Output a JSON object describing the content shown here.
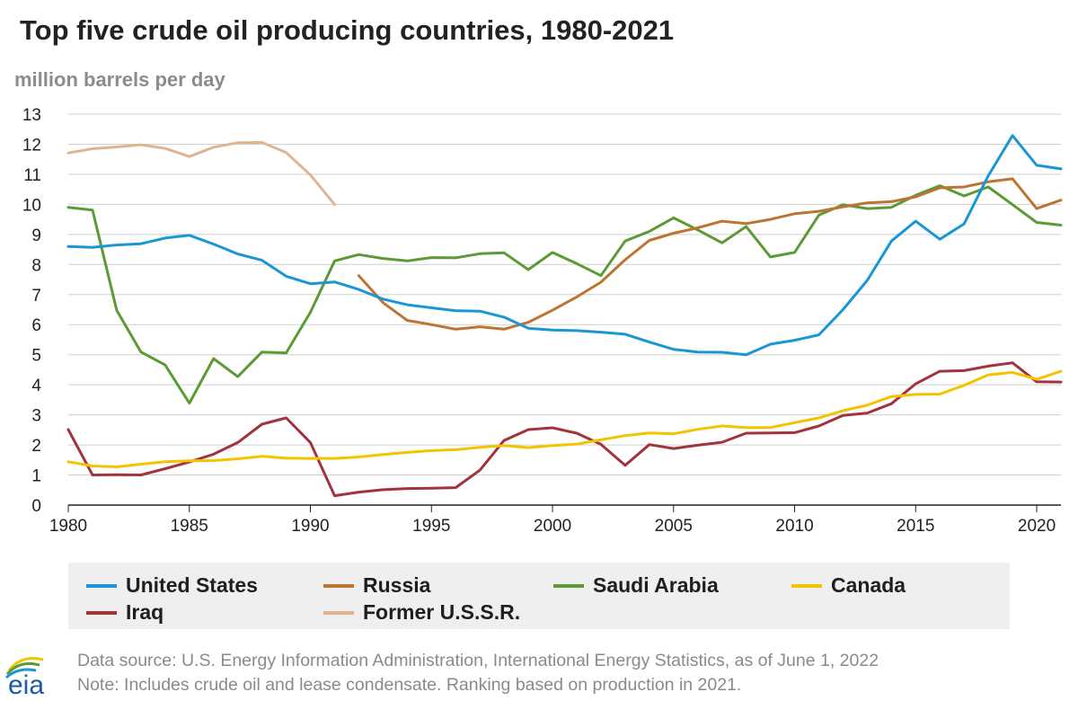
{
  "header": {
    "title": "Top five crude oil producing countries, 1980-2021",
    "unit": "million barrels per day"
  },
  "colors": {
    "United States": "#1a96d4",
    "Russia": "#bd7431",
    "Saudi Arabia": "#5b9a34",
    "Canada": "#f4c300",
    "Iraq": "#a2333d",
    "Former U.S.S.R.": "#dfb58f",
    "grid": "#cfcfcf",
    "axis": "#222222"
  },
  "chart_data": {
    "type": "line",
    "title": "Top five crude oil producing countries, 1980-2021",
    "xlabel": "",
    "ylabel": "million barrels per day",
    "xlim": [
      1980,
      2021
    ],
    "ylim": [
      0,
      13
    ],
    "x_ticks": [
      1980,
      1985,
      1990,
      1995,
      2000,
      2005,
      2010,
      2015,
      2020
    ],
    "y_ticks": [
      0,
      1,
      2,
      3,
      4,
      5,
      6,
      7,
      8,
      9,
      10,
      11,
      12,
      13
    ],
    "grid": true,
    "legend_position": "bottom",
    "series": [
      {
        "name": "United States",
        "x": [
          1980,
          1981,
          1982,
          1983,
          1984,
          1985,
          1986,
          1987,
          1988,
          1989,
          1990,
          1991,
          1992,
          1993,
          1994,
          1995,
          1996,
          1997,
          1998,
          1999,
          2000,
          2001,
          2002,
          2003,
          2004,
          2005,
          2006,
          2007,
          2008,
          2009,
          2010,
          2011,
          2012,
          2013,
          2014,
          2015,
          2016,
          2017,
          2018,
          2019,
          2020,
          2021
        ],
        "values": [
          8.6,
          8.57,
          8.65,
          8.69,
          8.88,
          8.97,
          8.68,
          8.35,
          8.14,
          7.61,
          7.36,
          7.42,
          7.17,
          6.85,
          6.66,
          6.56,
          6.46,
          6.45,
          6.25,
          5.88,
          5.82,
          5.8,
          5.75,
          5.68,
          5.42,
          5.18,
          5.09,
          5.08,
          5.0,
          5.35,
          5.48,
          5.66,
          6.5,
          7.47,
          8.78,
          9.44,
          8.84,
          9.35,
          10.95,
          12.29,
          11.3,
          11.18
        ]
      },
      {
        "name": "Russia",
        "x": [
          1992,
          1993,
          1994,
          1995,
          1996,
          1997,
          1998,
          1999,
          2000,
          2001,
          2002,
          2003,
          2004,
          2005,
          2006,
          2007,
          2008,
          2009,
          2010,
          2011,
          2012,
          2013,
          2014,
          2015,
          2016,
          2017,
          2018,
          2019,
          2020,
          2021
        ],
        "values": [
          7.63,
          6.73,
          6.14,
          6.0,
          5.85,
          5.93,
          5.85,
          6.08,
          6.48,
          6.92,
          7.41,
          8.16,
          8.8,
          9.04,
          9.22,
          9.44,
          9.36,
          9.5,
          9.69,
          9.77,
          9.92,
          10.05,
          10.09,
          10.25,
          10.55,
          10.58,
          10.75,
          10.85,
          9.86,
          10.14
        ]
      },
      {
        "name": "Saudi Arabia",
        "x": [
          1980,
          1981,
          1982,
          1983,
          1984,
          1985,
          1986,
          1987,
          1988,
          1989,
          1990,
          1991,
          1992,
          1993,
          1994,
          1995,
          1996,
          1997,
          1998,
          1999,
          2000,
          2001,
          2002,
          2003,
          2004,
          2005,
          2006,
          2007,
          2008,
          2009,
          2010,
          2011,
          2012,
          2013,
          2014,
          2015,
          2016,
          2017,
          2018,
          2019,
          2020,
          2021
        ],
        "values": [
          9.9,
          9.81,
          6.48,
          5.09,
          4.66,
          3.39,
          4.87,
          4.27,
          5.09,
          5.06,
          6.41,
          8.12,
          8.33,
          8.2,
          8.12,
          8.23,
          8.22,
          8.36,
          8.39,
          7.83,
          8.4,
          8.03,
          7.63,
          8.78,
          9.1,
          9.55,
          9.15,
          8.72,
          9.26,
          8.25,
          8.4,
          9.64,
          9.99,
          9.86,
          9.9,
          10.3,
          10.62,
          10.28,
          10.58,
          9.99,
          9.4,
          9.31
        ]
      },
      {
        "name": "Canada",
        "x": [
          1980,
          1981,
          1982,
          1983,
          1984,
          1985,
          1986,
          1987,
          1988,
          1989,
          1990,
          1991,
          1992,
          1993,
          1994,
          1995,
          1996,
          1997,
          1998,
          1999,
          2000,
          2001,
          2002,
          2003,
          2004,
          2005,
          2006,
          2007,
          2008,
          2009,
          2010,
          2011,
          2012,
          2013,
          2014,
          2015,
          2016,
          2017,
          2018,
          2019,
          2020,
          2021
        ],
        "values": [
          1.44,
          1.3,
          1.27,
          1.36,
          1.44,
          1.47,
          1.48,
          1.54,
          1.62,
          1.56,
          1.55,
          1.55,
          1.6,
          1.68,
          1.75,
          1.81,
          1.84,
          1.92,
          1.98,
          1.91,
          1.98,
          2.03,
          2.17,
          2.31,
          2.4,
          2.37,
          2.52,
          2.63,
          2.58,
          2.58,
          2.74,
          2.9,
          3.14,
          3.32,
          3.61,
          3.68,
          3.69,
          3.98,
          4.33,
          4.41,
          4.18,
          4.45
        ]
      },
      {
        "name": "Iraq",
        "x": [
          1980,
          1981,
          1982,
          1983,
          1984,
          1985,
          1986,
          1987,
          1988,
          1989,
          1990,
          1991,
          1992,
          1993,
          1994,
          1995,
          1996,
          1997,
          1998,
          1999,
          2000,
          2001,
          2002,
          2003,
          2004,
          2005,
          2006,
          2007,
          2008,
          2009,
          2010,
          2011,
          2012,
          2013,
          2014,
          2015,
          2016,
          2017,
          2018,
          2019,
          2020,
          2021
        ],
        "values": [
          2.51,
          1.0,
          1.01,
          1.0,
          1.21,
          1.43,
          1.69,
          2.08,
          2.69,
          2.9,
          2.08,
          0.31,
          0.43,
          0.51,
          0.55,
          0.56,
          0.58,
          1.16,
          2.15,
          2.51,
          2.57,
          2.39,
          2.02,
          1.32,
          2.01,
          1.88,
          1.99,
          2.09,
          2.39,
          2.4,
          2.41,
          2.63,
          2.98,
          3.06,
          3.37,
          4.03,
          4.45,
          4.47,
          4.62,
          4.73,
          4.1,
          4.09
        ]
      },
      {
        "name": "Former U.S.S.R.",
        "x": [
          1980,
          1981,
          1982,
          1983,
          1984,
          1985,
          1986,
          1987,
          1988,
          1989,
          1990,
          1991
        ],
        "values": [
          11.71,
          11.85,
          11.91,
          11.98,
          11.86,
          11.59,
          11.9,
          12.05,
          12.06,
          11.72,
          10.98,
          9.99
        ]
      }
    ]
  },
  "legend": {
    "items": [
      "United States",
      "Russia",
      "Saudi Arabia",
      "Canada",
      "Iraq",
      "Former U.S.S.R."
    ]
  },
  "footer": {
    "source": "Data source: U.S. Energy Information Administration, International Energy Statistics, as of June 1, 2022",
    "note": "Note: Includes crude oil and lease condensate. Ranking based on production in 2021."
  },
  "logo": {
    "text": "eia"
  }
}
